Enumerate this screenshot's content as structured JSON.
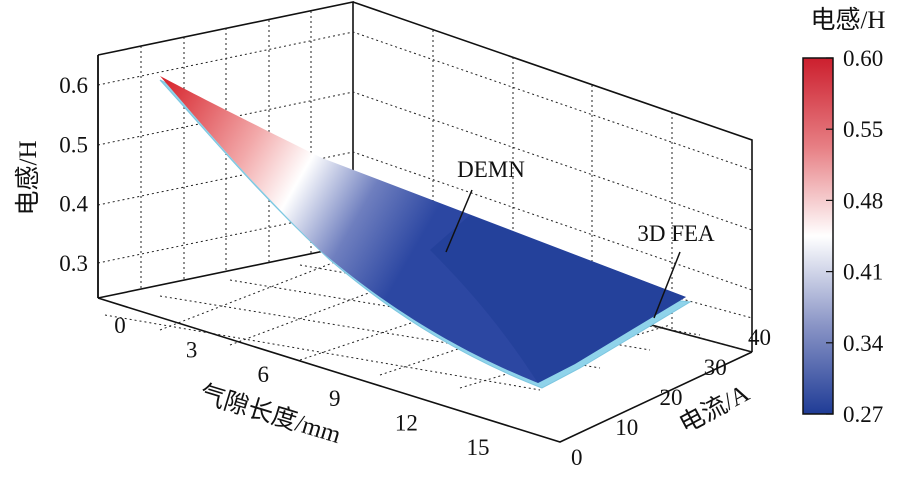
{
  "chart_data": {
    "type": "surface",
    "x_axis": {
      "label": "气隙长度/mm",
      "ticks": [
        "0",
        "3",
        "6",
        "9",
        "12",
        "15"
      ],
      "range": [
        0,
        17
      ]
    },
    "y_axis": {
      "label": "电流/A",
      "ticks": [
        "0",
        "10",
        "20",
        "30",
        "40"
      ],
      "range": [
        0,
        44
      ]
    },
    "z_axis": {
      "label": "电感/H",
      "ticks": [
        "0.3",
        "0.4",
        "0.5",
        "0.6"
      ],
      "range": [
        0.27,
        0.62
      ]
    },
    "colorbar": {
      "title": "电感/H",
      "ticks": [
        "0.60",
        "0.55",
        "0.48",
        "0.41",
        "0.34",
        "0.27"
      ],
      "colors": {
        "max": "#cc1f2e",
        "mid": "#ffffff",
        "min": "#1f3c96"
      }
    },
    "series": [
      {
        "name": "DEMN",
        "surface_corners": [
          {
            "airgap_mm": 0,
            "current_A": 0,
            "inductance_H": 0.61
          },
          {
            "airgap_mm": 17,
            "current_A": 0,
            "inductance_H": 0.27
          },
          {
            "airgap_mm": 17,
            "current_A": 44,
            "inductance_H": 0.27
          },
          {
            "airgap_mm": 0,
            "current_A": 44,
            "inductance_H": 0.45
          }
        ]
      },
      {
        "name": "3D FEA",
        "color": "#8fd3ea"
      }
    ],
    "annotations": [
      "DEMN",
      "3D FEA"
    ],
    "grid": true
  }
}
